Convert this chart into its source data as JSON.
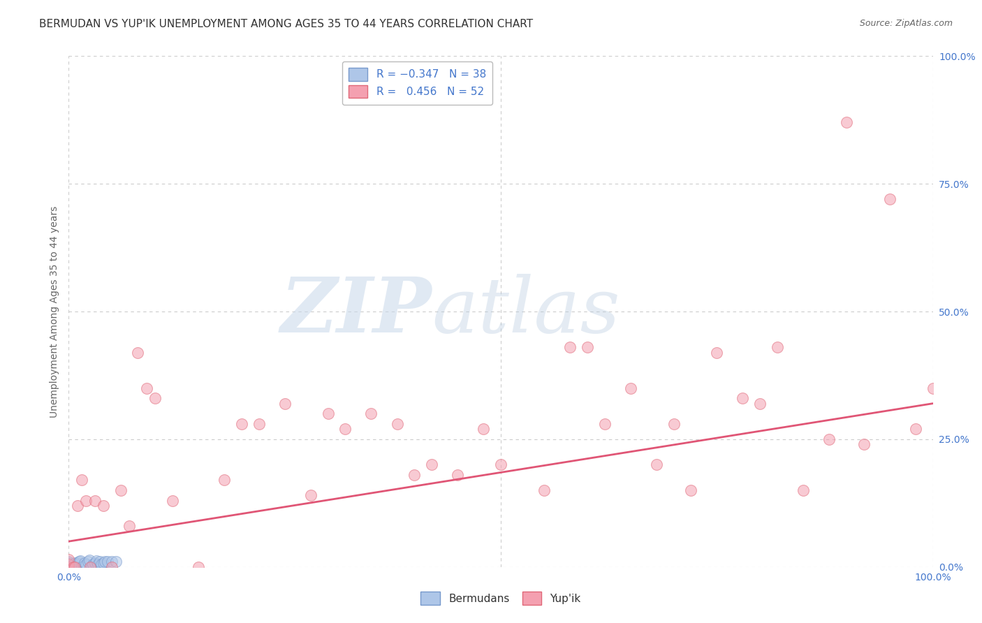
{
  "title": "BERMUDAN VS YUP'IK UNEMPLOYMENT AMONG AGES 35 TO 44 YEARS CORRELATION CHART",
  "source": "Source: ZipAtlas.com",
  "ylabel": "Unemployment Among Ages 35 to 44 years",
  "xlim": [
    0.0,
    1.0
  ],
  "ylim": [
    0.0,
    1.0
  ],
  "ytick_labels": [
    "0.0%",
    "25.0%",
    "50.0%",
    "75.0%",
    "100.0%"
  ],
  "ytick_positions": [
    0.0,
    0.25,
    0.5,
    0.75,
    1.0
  ],
  "xtick_positions": [
    0.0,
    0.5,
    1.0
  ],
  "xtick_labels": [
    "0.0%",
    "",
    "100.0%"
  ],
  "grid_color": "#cccccc",
  "background_color": "#ffffff",
  "bermuda_color": "#aec6e8",
  "yupik_color": "#f4a0b0",
  "bermuda_edge": "#7799cc",
  "yupik_edge": "#e06878",
  "trend_color_yupik": "#e05575",
  "title_color": "#333333",
  "axis_label_color": "#666666",
  "tick_label_color": "#4477cc",
  "legend_label_color": "#4477cc",
  "bottom_legend_color": "#333333",
  "bermuda_x": [
    0.0,
    0.0,
    0.0,
    0.0,
    0.0,
    0.0,
    0.0,
    0.0,
    0.0,
    0.0,
    0.0,
    0.0,
    0.0,
    0.0,
    0.005,
    0.005,
    0.007,
    0.01,
    0.01,
    0.012,
    0.013,
    0.015,
    0.018,
    0.02,
    0.022,
    0.024,
    0.026,
    0.028,
    0.03,
    0.032,
    0.034,
    0.036,
    0.038,
    0.04,
    0.042,
    0.045,
    0.05,
    0.055
  ],
  "bermuda_y": [
    0.0,
    0.0,
    0.0,
    0.0,
    0.0,
    0.0,
    0.0,
    0.0,
    0.0,
    0.005,
    0.005,
    0.007,
    0.008,
    0.01,
    0.0,
    0.005,
    0.008,
    0.005,
    0.008,
    0.01,
    0.012,
    0.0,
    0.008,
    0.005,
    0.01,
    0.013,
    0.0,
    0.005,
    0.008,
    0.012,
    0.005,
    0.01,
    0.005,
    0.008,
    0.01,
    0.01,
    0.01,
    0.01
  ],
  "yupik_x": [
    0.0,
    0.0,
    0.0,
    0.005,
    0.007,
    0.01,
    0.015,
    0.02,
    0.025,
    0.03,
    0.04,
    0.05,
    0.06,
    0.07,
    0.08,
    0.09,
    0.1,
    0.12,
    0.15,
    0.18,
    0.2,
    0.22,
    0.25,
    0.28,
    0.3,
    0.32,
    0.35,
    0.38,
    0.4,
    0.42,
    0.45,
    0.48,
    0.5,
    0.55,
    0.58,
    0.6,
    0.62,
    0.65,
    0.68,
    0.7,
    0.72,
    0.75,
    0.78,
    0.8,
    0.82,
    0.85,
    0.88,
    0.9,
    0.92,
    0.95,
    0.98,
    1.0
  ],
  "yupik_y": [
    0.0,
    0.005,
    0.015,
    0.0,
    0.0,
    0.12,
    0.17,
    0.13,
    0.0,
    0.13,
    0.12,
    0.0,
    0.15,
    0.08,
    0.42,
    0.35,
    0.33,
    0.13,
    0.0,
    0.17,
    0.28,
    0.28,
    0.32,
    0.14,
    0.3,
    0.27,
    0.3,
    0.28,
    0.18,
    0.2,
    0.18,
    0.27,
    0.2,
    0.15,
    0.43,
    0.43,
    0.28,
    0.35,
    0.2,
    0.28,
    0.15,
    0.42,
    0.33,
    0.32,
    0.43,
    0.15,
    0.25,
    0.87,
    0.24,
    0.72,
    0.27,
    0.35
  ],
  "yupik_trend_x": [
    0.0,
    1.0
  ],
  "yupik_trend_y": [
    0.05,
    0.32
  ],
  "marker_size": 130,
  "marker_alpha": 0.55,
  "title_fontsize": 11,
  "label_fontsize": 10,
  "tick_fontsize": 10,
  "legend_fontsize": 11,
  "source_fontsize": 9
}
